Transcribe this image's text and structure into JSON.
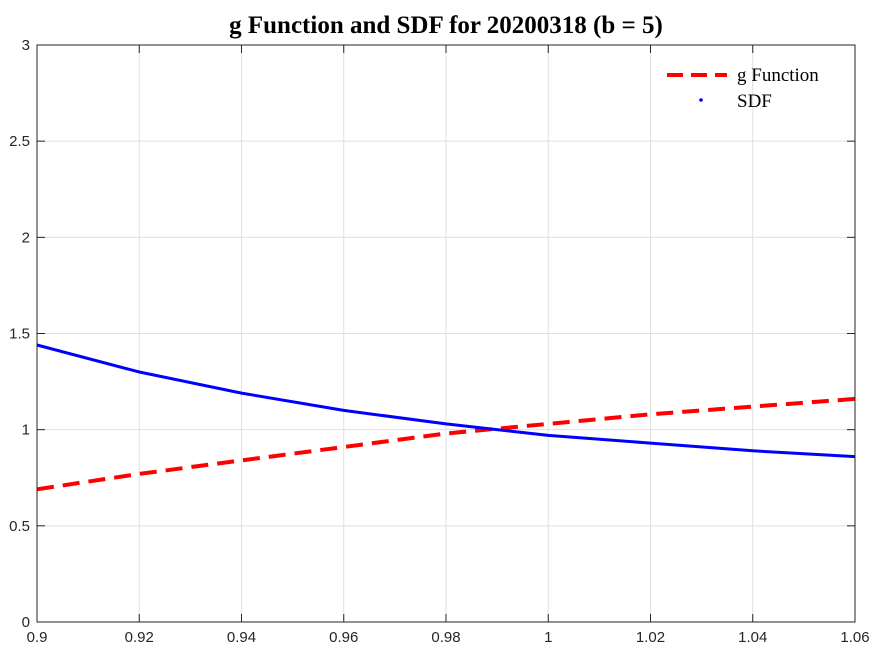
{
  "chart_data": {
    "type": "line",
    "title": "g Function and SDF for 20200318 (b = 5)",
    "xlabel": "",
    "ylabel": "",
    "xlim": [
      0.9,
      1.06
    ],
    "ylim": [
      0,
      3
    ],
    "grid": true,
    "legend_position": "top-right",
    "x_ticks": [
      0.9,
      0.92,
      0.94,
      0.96,
      0.98,
      1,
      1.02,
      1.04,
      1.06
    ],
    "x_tick_labels": [
      "0.9",
      "0.92",
      "0.94",
      "0.96",
      "0.98",
      "1",
      "1.02",
      "1.04",
      "1.06"
    ],
    "y_ticks": [
      0,
      0.5,
      1,
      1.5,
      2,
      2.5,
      3
    ],
    "y_tick_labels": [
      "0",
      "0.5",
      "1",
      "1.5",
      "2",
      "2.5",
      "3"
    ],
    "series": [
      {
        "name": "g Function",
        "color": "#ff0000",
        "style": "dashed",
        "x": [
          0.9,
          0.92,
          0.94,
          0.96,
          0.98,
          1.0,
          1.02,
          1.04,
          1.06
        ],
        "y": [
          0.69,
          0.77,
          0.84,
          0.91,
          0.98,
          1.03,
          1.08,
          1.12,
          1.16
        ]
      },
      {
        "name": "SDF",
        "color": "#0000ff",
        "style": "solid",
        "x": [
          0.9,
          0.92,
          0.94,
          0.96,
          0.98,
          1.0,
          1.02,
          1.04,
          1.06
        ],
        "y": [
          1.44,
          1.3,
          1.19,
          1.1,
          1.03,
          0.97,
          0.93,
          0.89,
          0.86
        ]
      }
    ]
  }
}
